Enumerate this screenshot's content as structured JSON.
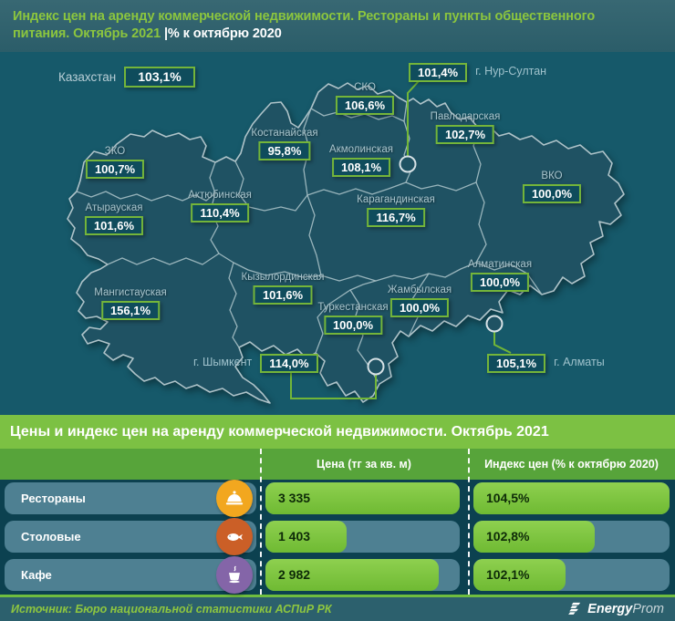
{
  "header": {
    "title_line1": "Индекс цен на аренду коммерческой недвижимости. Рестораны и пункты общественного",
    "title_line2_green": "питания. Октябрь 2021 ",
    "title_line2_white": "|% к октябрю 2020"
  },
  "map": {
    "country": {
      "name": "Казахстан",
      "value": "103,1%"
    },
    "regions": [
      {
        "name": "СКО",
        "value": "106,6%"
      },
      {
        "name": "Костанайская",
        "value": "95,8%"
      },
      {
        "name": "Акмолинская",
        "value": "108,1%"
      },
      {
        "name": "Павлодарская",
        "value": "102,7%"
      },
      {
        "name": "ВКО",
        "value": "100,0%"
      },
      {
        "name": "ЗКО",
        "value": "100,7%"
      },
      {
        "name": "Атырауская",
        "value": "101,6%"
      },
      {
        "name": "Актюбинская",
        "value": "110,4%"
      },
      {
        "name": "Карагандинская",
        "value": "116,7%"
      },
      {
        "name": "Мангистауская",
        "value": "156,1%"
      },
      {
        "name": "Кызылординская",
        "value": "101,6%"
      },
      {
        "name": "Туркестанская",
        "value": "100,0%"
      },
      {
        "name": "Жамбылская",
        "value": "100,0%"
      },
      {
        "name": "Алматинская",
        "value": "100,0%"
      }
    ],
    "cities": [
      {
        "name": "г. Нур-Султан",
        "value": "101,4%"
      },
      {
        "name": "г. Алматы",
        "value": "105,1%"
      },
      {
        "name": "г. Шымкент",
        "value": "114,0%"
      }
    ]
  },
  "table": {
    "title": "Цены и индекс цен на аренду коммерческой недвижимости. Октябрь 2021",
    "col_price": "Цена (тг за кв. м)",
    "col_index": "Индекс цен (% к октябрю 2020)",
    "rows": [
      {
        "label": "Рестораны",
        "icon": "cloche-icon",
        "icon_color": "#f2a71f",
        "price": "3 335",
        "index": "104,5%",
        "price_pct": 100,
        "index_pct": 100
      },
      {
        "label": "Столовые",
        "icon": "fish-icon",
        "icon_color": "#cb5f27",
        "price": "1 403",
        "index": "102,8%",
        "price_pct": 42,
        "index_pct": 62
      },
      {
        "label": "Кафе",
        "icon": "cup-icon",
        "icon_color": "#8465a8",
        "price": "2 982",
        "index": "102,1%",
        "price_pct": 89,
        "index_pct": 47
      }
    ]
  },
  "footer": {
    "source": "Источник: Бюро национальной статистики АСПиР РК",
    "logo_bold": "Energy",
    "logo_light": "Prom"
  },
  "chart_data": [
    {
      "type": "heatmap",
      "subtype": "choropleth-map-kazakhstan",
      "title": "Индекс цен на аренду коммерческой недвижимости. Рестораны и пункты общественного питания. Октябрь 2021, % к октябрю 2020",
      "country_total": {
        "name": "Казахстан",
        "value": 103.1
      },
      "regions": [
        {
          "name": "СКО",
          "value": 106.6
        },
        {
          "name": "Костанайская",
          "value": 95.8
        },
        {
          "name": "Акмолинская",
          "value": 108.1
        },
        {
          "name": "Павлодарская",
          "value": 102.7
        },
        {
          "name": "ВКО",
          "value": 100.0
        },
        {
          "name": "ЗКО",
          "value": 100.7
        },
        {
          "name": "Атырауская",
          "value": 101.6
        },
        {
          "name": "Актюбинская",
          "value": 110.4
        },
        {
          "name": "Карагандинская",
          "value": 116.7
        },
        {
          "name": "Мангистауская",
          "value": 156.1
        },
        {
          "name": "Кызылординская",
          "value": 101.6
        },
        {
          "name": "Туркестанская",
          "value": 100.0
        },
        {
          "name": "Жамбылская",
          "value": 100.0
        },
        {
          "name": "Алматинская",
          "value": 100.0
        },
        {
          "name": "г. Нур-Султан",
          "value": 101.4
        },
        {
          "name": "г. Алматы",
          "value": 105.1
        },
        {
          "name": "г. Шымкент",
          "value": 114.0
        }
      ]
    },
    {
      "type": "table",
      "title": "Цены и индекс цен на аренду коммерческой недвижимости. Октябрь 2021",
      "columns": [
        "",
        "Цена (тг за кв. м)",
        "Индекс цен (% к октябрю 2020)"
      ],
      "rows": [
        {
          "category": "Рестораны",
          "price_kzt_per_sqm": 3335,
          "index_pct_to_oct_2020": 104.5
        },
        {
          "category": "Столовые",
          "price_kzt_per_sqm": 1403,
          "index_pct_to_oct_2020": 102.8
        },
        {
          "category": "Кафе",
          "price_kzt_per_sqm": 2982,
          "index_pct_to_oct_2020": 102.1
        }
      ]
    }
  ]
}
